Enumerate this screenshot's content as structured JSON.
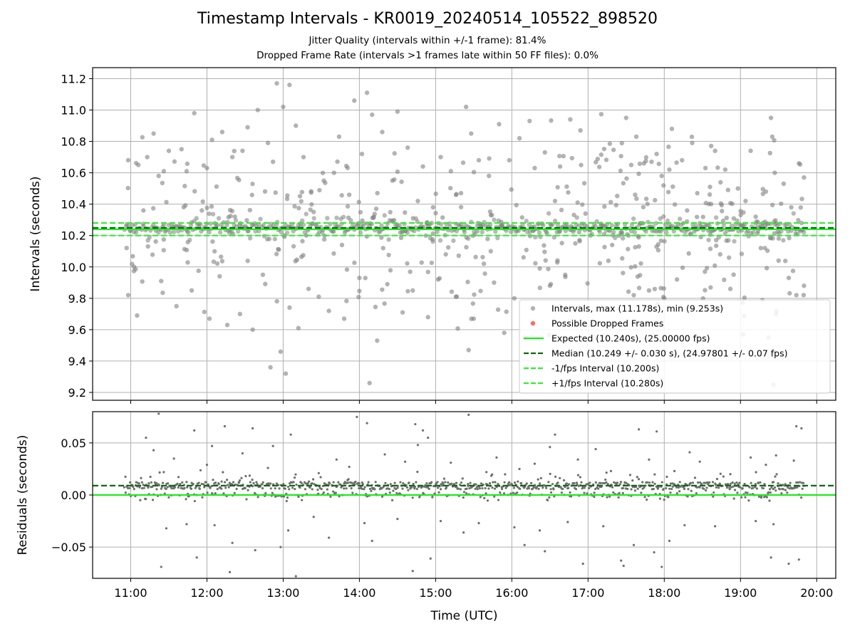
{
  "title": "Timestamp Intervals - KR0019_20240514_105522_898520",
  "subtitle_1": "Jitter Quality (intervals within +/-1 frame): 81.4%",
  "subtitle_2": "Dropped Frame Rate (intervals >1 frames late within 50 FF files): 0.0%",
  "colors": {
    "points": "#808080",
    "dropped": "#ff4444",
    "expected": "#1aed1a",
    "median": "#0b6b0b",
    "interval": "#2ef02e",
    "grid": "#b0b0b0"
  },
  "chart_data": [
    {
      "type": "scatter",
      "panel": "top",
      "xlabel": "",
      "ylabel": "Intervals (seconds)",
      "xlim": [
        "10:30",
        "20:15"
      ],
      "ylim": [
        9.15,
        11.27
      ],
      "xticks": [
        "11:00",
        "12:00",
        "13:00",
        "14:00",
        "15:00",
        "16:00",
        "17:00",
        "18:00",
        "19:00",
        "20:00"
      ],
      "yticks": [
        "9.2",
        "9.4",
        "9.6",
        "9.8",
        "10.0",
        "10.2",
        "10.4",
        "10.6",
        "10.8",
        "11.0",
        "11.2"
      ],
      "ytick_values": [
        9.2,
        9.4,
        9.6,
        9.8,
        10.0,
        10.2,
        10.4,
        10.6,
        10.8,
        11.0,
        11.2
      ],
      "data_time_range": [
        "10:55",
        "19:50"
      ],
      "grid": true,
      "legend_position": "lower-right",
      "reference_lines": [
        {
          "name": "Expected (10.240s), (25.00000 fps)",
          "y": 10.24,
          "style": "solid",
          "color": "#1aed1a"
        },
        {
          "name": "Median (10.249 +/- 0.030 s), (24.97801 +/- 0.07 fps)",
          "y": 10.249,
          "style": "dashed",
          "color": "#0b6b0b"
        },
        {
          "name": "-1/fps Interval (10.200s)",
          "y": 10.2,
          "style": "dashed",
          "color": "#2ef02e"
        },
        {
          "name": "+1/fps Interval (10.280s)",
          "y": 10.28,
          "style": "dashed",
          "color": "#2ef02e"
        }
      ],
      "series": [
        {
          "name": "Intervals, max (11.178s), min (9.253s)",
          "marker": "circle",
          "color": "#808080",
          "max": 11.178,
          "min": 9.253
        },
        {
          "name": "Possible Dropped Frames",
          "marker": "circle",
          "color": "#ff4444",
          "values": []
        }
      ],
      "points": [
        [
          "10:58",
          10.68
        ],
        [
          "10:58",
          9.82
        ],
        [
          "11:05",
          9.69
        ],
        [
          "11:06",
          10.65
        ],
        [
          "11:10",
          10.36
        ],
        [
          "11:13",
          10.7
        ],
        [
          "11:18",
          10.85
        ],
        [
          "11:22",
          10.58
        ],
        [
          "11:24",
          9.91
        ],
        [
          "11:26",
          10.61
        ],
        [
          "11:30",
          10.74
        ],
        [
          "11:36",
          9.75
        ],
        [
          "11:40",
          10.75
        ],
        [
          "11:44",
          10.61
        ],
        [
          "11:48",
          9.85
        ],
        [
          "11:50",
          10.98
        ],
        [
          "11:56",
          10.36
        ],
        [
          "12:00",
          10.63
        ],
        [
          "12:02",
          9.67
        ],
        [
          "12:04",
          10.81
        ],
        [
          "12:10",
          9.94
        ],
        [
          "12:12",
          10.86
        ],
        [
          "12:16",
          9.63
        ],
        [
          "12:20",
          10.7
        ],
        [
          "12:22",
          10.32
        ],
        [
          "12:26",
          9.7
        ],
        [
          "12:28",
          10.74
        ],
        [
          "12:32",
          10.89
        ],
        [
          "12:36",
          9.6
        ],
        [
          "12:40",
          11.0
        ],
        [
          "12:44",
          9.95
        ],
        [
          "12:48",
          10.79
        ],
        [
          "12:50",
          9.36
        ],
        [
          "12:52",
          10.67
        ],
        [
          "12:55",
          11.17
        ],
        [
          "12:58",
          9.46
        ],
        [
          "13:00",
          11.02
        ],
        [
          "13:02",
          9.32
        ],
        [
          "13:05",
          11.16
        ],
        [
          "13:10",
          10.9
        ],
        [
          "13:12",
          9.61
        ],
        [
          "13:16",
          10.7
        ],
        [
          "13:20",
          9.86
        ],
        [
          "13:24",
          10.35
        ],
        [
          "13:28",
          9.81
        ],
        [
          "13:32",
          10.55
        ],
        [
          "13:36",
          9.72
        ],
        [
          "13:40",
          10.6
        ],
        [
          "13:44",
          10.83
        ],
        [
          "13:48",
          9.67
        ],
        [
          "13:52",
          10.46
        ],
        [
          "13:56",
          11.06
        ],
        [
          "14:00",
          9.93
        ],
        [
          "14:02",
          10.72
        ],
        [
          "14:06",
          11.11
        ],
        [
          "14:08",
          9.26
        ],
        [
          "14:10",
          10.97
        ],
        [
          "14:14",
          9.53
        ],
        [
          "14:18",
          10.86
        ],
        [
          "14:22",
          9.89
        ],
        [
          "14:26",
          10.55
        ],
        [
          "14:30",
          10.99
        ],
        [
          "14:34",
          9.71
        ],
        [
          "14:38",
          10.76
        ],
        [
          "14:42",
          9.85
        ],
        [
          "14:46",
          10.42
        ],
        [
          "14:50",
          10.64
        ],
        [
          "14:54",
          9.68
        ],
        [
          "14:58",
          10.38
        ],
        [
          "15:02",
          9.92
        ],
        [
          "15:04",
          10.7
        ],
        [
          "15:08",
          10.08
        ],
        [
          "15:12",
          10.61
        ],
        [
          "15:16",
          9.81
        ],
        [
          "15:20",
          10.47
        ],
        [
          "15:24",
          11.02
        ],
        [
          "15:26",
          9.47
        ],
        [
          "15:28",
          10.85
        ],
        [
          "15:30",
          9.67
        ],
        [
          "15:34",
          10.68
        ],
        [
          "15:38",
          10.02
        ],
        [
          "15:42",
          10.58
        ],
        [
          "15:46",
          9.9
        ],
        [
          "15:50",
          10.91
        ],
        [
          "15:54",
          9.58
        ],
        [
          "15:58",
          10.68
        ],
        [
          "16:02",
          9.8
        ],
        [
          "16:06",
          10.82
        ],
        [
          "16:10",
          9.55
        ],
        [
          "16:14",
          10.93
        ],
        [
          "16:18",
          10.63
        ],
        [
          "16:22",
          9.99
        ],
        [
          "16:26",
          10.73
        ],
        [
          "16:30",
          9.88
        ],
        [
          "16:34",
          10.42
        ],
        [
          "16:38",
          10.64
        ],
        [
          "16:42",
          9.95
        ],
        [
          "16:46",
          10.94
        ],
        [
          "16:50",
          10.15
        ],
        [
          "16:54",
          10.87
        ],
        [
          "16:58",
          10.34
        ],
        [
          "17:02",
          10.2
        ],
        [
          "17:30",
          10.95
        ],
        [
          "17:34",
          10.65
        ],
        [
          "17:36",
          9.82
        ],
        [
          "17:38",
          10.83
        ],
        [
          "17:40",
          10.13
        ],
        [
          "17:44",
          10.66
        ],
        [
          "17:48",
          9.85
        ],
        [
          "17:50",
          10.67
        ],
        [
          "17:54",
          10.72
        ],
        [
          "17:58",
          10.58
        ],
        [
          "18:00",
          9.8
        ],
        [
          "18:04",
          10.62
        ],
        [
          "18:06",
          10.88
        ],
        [
          "18:10",
          9.92
        ],
        [
          "18:14",
          10.68
        ],
        [
          "18:18",
          10.36
        ],
        [
          "18:22",
          10.79
        ],
        [
          "18:26",
          10.47
        ],
        [
          "18:32",
          9.97
        ],
        [
          "18:36",
          10.51
        ],
        [
          "18:40",
          10.74
        ],
        [
          "18:44",
          10.08
        ],
        [
          "18:48",
          10.62
        ],
        [
          "18:52",
          9.86
        ],
        [
          "18:58",
          10.5
        ],
        [
          "19:02",
          9.57
        ],
        [
          "19:04",
          10.42
        ],
        [
          "19:08",
          10.74
        ],
        [
          "19:12",
          10.32
        ],
        [
          "19:16",
          10.12
        ],
        [
          "19:20",
          10.48
        ],
        [
          "19:22",
          9.55
        ],
        [
          "19:24",
          10.95
        ],
        [
          "19:25",
          10.83
        ],
        [
          "19:26",
          9.25
        ],
        [
          "19:27",
          10.6
        ],
        [
          "19:28",
          9.7
        ],
        [
          "19:30",
          10.04
        ],
        [
          "19:34",
          10.53
        ],
        [
          "19:38",
          9.93
        ],
        [
          "19:40",
          10.38
        ],
        [
          "19:44",
          9.82
        ],
        [
          "19:46",
          10.66
        ],
        [
          "19:48",
          10.28
        ],
        [
          "19:50",
          10.57
        ],
        [
          "19:50",
          9.88
        ]
      ]
    },
    {
      "type": "scatter",
      "panel": "bottom",
      "xlabel": "Time (UTC)",
      "ylabel": "Residuals (seconds)",
      "xlim": [
        "10:30",
        "20:15"
      ],
      "ylim": [
        -0.08,
        0.08
      ],
      "yticks": [
        "−0.05",
        "0.00",
        "0.05"
      ],
      "ytick_values": [
        -0.05,
        0.0,
        0.05
      ],
      "grid": true,
      "reference_lines": [
        {
          "y": 0.0,
          "style": "solid",
          "color": "#1aed1a"
        },
        {
          "y": 0.009,
          "style": "dashed",
          "color": "#0b6b0b"
        }
      ],
      "points": [
        [
          "11:12",
          0.055
        ],
        [
          "11:18",
          0.043
        ],
        [
          "11:22",
          0.078
        ],
        [
          "11:24",
          -0.069
        ],
        [
          "11:28",
          -0.032
        ],
        [
          "11:34",
          0.035
        ],
        [
          "11:44",
          -0.028
        ],
        [
          "11:50",
          0.062
        ],
        [
          "11:52",
          -0.06
        ],
        [
          "12:00",
          0.029
        ],
        [
          "12:04",
          0.047
        ],
        [
          "12:06",
          -0.029
        ],
        [
          "12:14",
          0.066
        ],
        [
          "12:18",
          -0.074
        ],
        [
          "12:20",
          -0.046
        ],
        [
          "12:28",
          0.04
        ],
        [
          "12:36",
          0.064
        ],
        [
          "12:38",
          -0.053
        ],
        [
          "12:48",
          0.026
        ],
        [
          "12:52",
          0.047
        ],
        [
          "12:58",
          -0.05
        ],
        [
          "13:04",
          -0.034
        ],
        [
          "13:06",
          0.058
        ],
        [
          "13:10",
          -0.078
        ],
        [
          "13:24",
          -0.021
        ],
        [
          "13:28",
          0.021
        ],
        [
          "13:36",
          -0.041
        ],
        [
          "13:42",
          0.034
        ],
        [
          "13:52",
          0.027
        ],
        [
          "13:58",
          0.075
        ],
        [
          "14:04",
          -0.027
        ],
        [
          "14:06",
          0.069
        ],
        [
          "14:10",
          -0.044
        ],
        [
          "14:20",
          0.039
        ],
        [
          "14:30",
          -0.023
        ],
        [
          "14:36",
          0.032
        ],
        [
          "14:42",
          -0.073
        ],
        [
          "14:44",
          0.068
        ],
        [
          "14:46",
          0.048
        ],
        [
          "14:50",
          0.062
        ],
        [
          "14:54",
          0.055
        ],
        [
          "14:56",
          -0.061
        ],
        [
          "15:04",
          -0.025
        ],
        [
          "15:12",
          0.031
        ],
        [
          "15:22",
          -0.036
        ],
        [
          "15:26",
          0.077
        ],
        [
          "15:34",
          -0.027
        ],
        [
          "15:40",
          0.022
        ],
        [
          "15:48",
          0.036
        ],
        [
          "16:02",
          -0.031
        ],
        [
          "16:06",
          0.025
        ],
        [
          "16:10",
          -0.048
        ],
        [
          "16:18",
          0.03
        ],
        [
          "16:22",
          -0.034
        ],
        [
          "16:26",
          -0.054
        ],
        [
          "16:30",
          0.046
        ],
        [
          "16:34",
          0.058
        ],
        [
          "16:44",
          -0.026
        ],
        [
          "16:52",
          0.034
        ],
        [
          "16:56",
          -0.066
        ],
        [
          "17:06",
          0.044
        ],
        [
          "17:12",
          -0.03
        ],
        [
          "17:18",
          0.023
        ],
        [
          "17:26",
          -0.063
        ],
        [
          "17:28",
          -0.068
        ],
        [
          "17:36",
          -0.048
        ],
        [
          "17:40",
          0.063
        ],
        [
          "17:48",
          0.034
        ],
        [
          "17:52",
          -0.055
        ],
        [
          "17:54",
          0.061
        ],
        [
          "17:58",
          -0.069
        ],
        [
          "18:04",
          -0.044
        ],
        [
          "18:08",
          0.023
        ],
        [
          "18:16",
          -0.029
        ],
        [
          "18:20",
          0.041
        ],
        [
          "18:28",
          0.032
        ],
        [
          "18:40",
          -0.03
        ],
        [
          "18:52",
          0.02
        ],
        [
          "19:08",
          0.036
        ],
        [
          "19:12",
          -0.025
        ],
        [
          "19:20",
          0.029
        ],
        [
          "19:24",
          -0.06
        ],
        [
          "19:26",
          -0.028
        ],
        [
          "19:28",
          0.038
        ],
        [
          "19:38",
          -0.066
        ],
        [
          "19:42",
          0.033
        ],
        [
          "19:44",
          0.066
        ],
        [
          "19:46",
          -0.062
        ],
        [
          "19:48",
          0.064
        ]
      ]
    }
  ]
}
